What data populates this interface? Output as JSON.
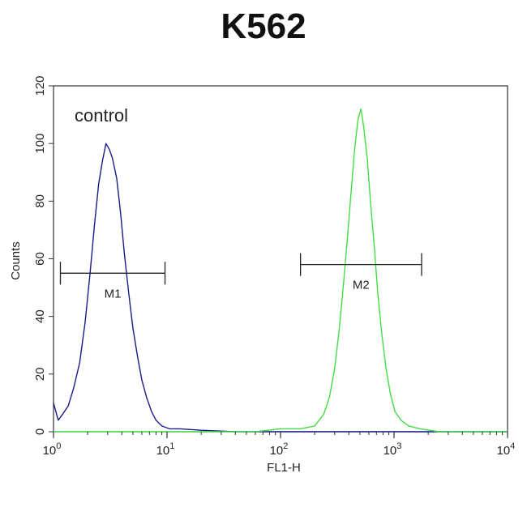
{
  "chart_data": {
    "type": "line",
    "title": "K562",
    "xlabel": "FL1-H",
    "ylabel": "Counts",
    "x_scale": "log",
    "xlim": [
      1,
      10000
    ],
    "ylim": [
      0,
      120
    ],
    "x_ticks": [
      {
        "value": 1,
        "base": "10",
        "exp": "0"
      },
      {
        "value": 10,
        "base": "10",
        "exp": "1"
      },
      {
        "value": 100,
        "base": "10",
        "exp": "2"
      },
      {
        "value": 1000,
        "base": "10",
        "exp": "3"
      },
      {
        "value": 10000,
        "base": "10",
        "exp": "4"
      }
    ],
    "y_ticks": [
      {
        "value": 0,
        "label": "0"
      },
      {
        "value": 20,
        "label": "20"
      },
      {
        "value": 40,
        "label": "40"
      },
      {
        "value": 60,
        "label": "60"
      },
      {
        "value": 80,
        "label": "80"
      },
      {
        "value": 100,
        "label": "100"
      },
      {
        "value": 120,
        "label": "120"
      }
    ],
    "grid": false,
    "annotation": "control",
    "series": [
      {
        "color": "#1a1a8c",
        "points": [
          [
            1.0,
            10
          ],
          [
            1.1,
            4
          ],
          [
            1.2,
            6
          ],
          [
            1.35,
            9
          ],
          [
            1.5,
            15
          ],
          [
            1.7,
            24
          ],
          [
            1.9,
            38
          ],
          [
            2.1,
            55
          ],
          [
            2.3,
            72
          ],
          [
            2.5,
            86
          ],
          [
            2.7,
            94
          ],
          [
            2.9,
            100
          ],
          [
            3.1,
            98
          ],
          [
            3.3,
            95
          ],
          [
            3.6,
            88
          ],
          [
            3.9,
            76
          ],
          [
            4.2,
            62
          ],
          [
            4.6,
            48
          ],
          [
            5.0,
            36
          ],
          [
            5.5,
            26
          ],
          [
            6.0,
            18
          ],
          [
            6.6,
            12
          ],
          [
            7.3,
            7
          ],
          [
            8.0,
            4
          ],
          [
            9.0,
            2
          ],
          [
            10.5,
            1
          ],
          [
            13,
            1
          ],
          [
            20,
            0.5
          ],
          [
            40,
            0
          ],
          [
            100,
            0
          ],
          [
            300,
            0
          ],
          [
            1000,
            0
          ],
          [
            3000,
            0
          ],
          [
            10000,
            0
          ]
        ]
      },
      {
        "color": "#44dd44",
        "points": [
          [
            1.0,
            0
          ],
          [
            10,
            0
          ],
          [
            60,
            0
          ],
          [
            100,
            1
          ],
          [
            150,
            1
          ],
          [
            200,
            2
          ],
          [
            240,
            6
          ],
          [
            270,
            12
          ],
          [
            300,
            22
          ],
          [
            330,
            36
          ],
          [
            360,
            52
          ],
          [
            390,
            68
          ],
          [
            420,
            84
          ],
          [
            450,
            98
          ],
          [
            480,
            108
          ],
          [
            510,
            112
          ],
          [
            540,
            106
          ],
          [
            580,
            95
          ],
          [
            620,
            80
          ],
          [
            670,
            64
          ],
          [
            720,
            48
          ],
          [
            780,
            34
          ],
          [
            850,
            22
          ],
          [
            930,
            13
          ],
          [
            1020,
            7
          ],
          [
            1150,
            4
          ],
          [
            1350,
            2
          ],
          [
            1700,
            1
          ],
          [
            2500,
            0
          ],
          [
            10000,
            0
          ]
        ]
      }
    ],
    "markers": [
      {
        "label": "M1",
        "x_start": 1.15,
        "x_end": 9.6,
        "y": 55
      },
      {
        "label": "M2",
        "x_start": 150,
        "x_end": 1750,
        "y": 58
      }
    ]
  }
}
